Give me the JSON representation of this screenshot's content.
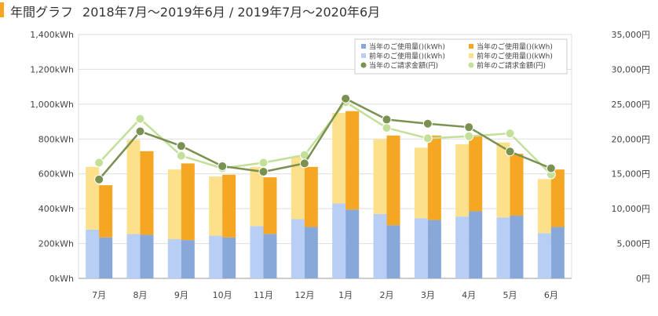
{
  "header": {
    "title": "年間グラフ",
    "period": "2018年7月～2019年6月 / 2019年7月～2020年6月"
  },
  "chart_data": {
    "type": "bar",
    "categories": [
      "7月",
      "8月",
      "9月",
      "10月",
      "11月",
      "12月",
      "1月",
      "2月",
      "3月",
      "4月",
      "5月",
      "6月"
    ],
    "y_left": {
      "min": 0,
      "max": 1400,
      "step": 200,
      "unit": "kWh",
      "tick_labels": [
        "0kWh",
        "200kWh",
        "400kWh",
        "600kWh",
        "800kWh",
        "1,000kWh",
        "1,200kWh",
        "1,400kWh"
      ]
    },
    "y_right": {
      "min": 0,
      "max": 35000,
      "step": 5000,
      "unit": "円",
      "tick_labels": [
        "0円",
        "5,000円",
        "10,000円",
        "15,000円",
        "20,000円",
        "25,000円",
        "30,000円",
        "35,000円"
      ]
    },
    "grid": true,
    "legend_position": "top-right",
    "series": [
      {
        "name": "前年のご使用量()(kWh)",
        "kind": "bar",
        "group": "prev",
        "part": "lower",
        "color": "#b8cef5",
        "values": [
          280,
          255,
          225,
          245,
          300,
          340,
          430,
          370,
          345,
          355,
          350,
          260
        ]
      },
      {
        "name": "前年のご使用量()(kWh)",
        "kind": "bar",
        "group": "prev",
        "part": "upper",
        "color": "#fde18a",
        "values": [
          360,
          540,
          400,
          340,
          340,
          360,
          520,
          430,
          405,
          415,
          430,
          310
        ]
      },
      {
        "name": "当年のご使用量()(kWh)",
        "kind": "bar",
        "group": "curr",
        "part": "lower",
        "color": "#87a8d8",
        "values": [
          235,
          250,
          220,
          235,
          255,
          295,
          395,
          305,
          335,
          385,
          360,
          295
        ]
      },
      {
        "name": "当年のご使用量()(kWh)",
        "kind": "bar",
        "group": "curr",
        "part": "upper",
        "color": "#f5a623",
        "values": [
          300,
          480,
          440,
          360,
          325,
          345,
          565,
          515,
          485,
          435,
          355,
          330
        ]
      },
      {
        "name": "当年のご請求金額(円)",
        "kind": "line",
        "axis": "right",
        "color": "#7a9151",
        "values": [
          14200,
          21100,
          19000,
          16100,
          15300,
          16500,
          25800,
          22800,
          22200,
          21700,
          18200,
          15800
        ]
      },
      {
        "name": "前年のご請求金額(円)",
        "kind": "line",
        "axis": "right",
        "color": "#c2e09a",
        "values": [
          16600,
          22900,
          17600,
          15800,
          16600,
          17700,
          25300,
          21600,
          20100,
          20400,
          20800,
          14900
        ]
      }
    ]
  }
}
